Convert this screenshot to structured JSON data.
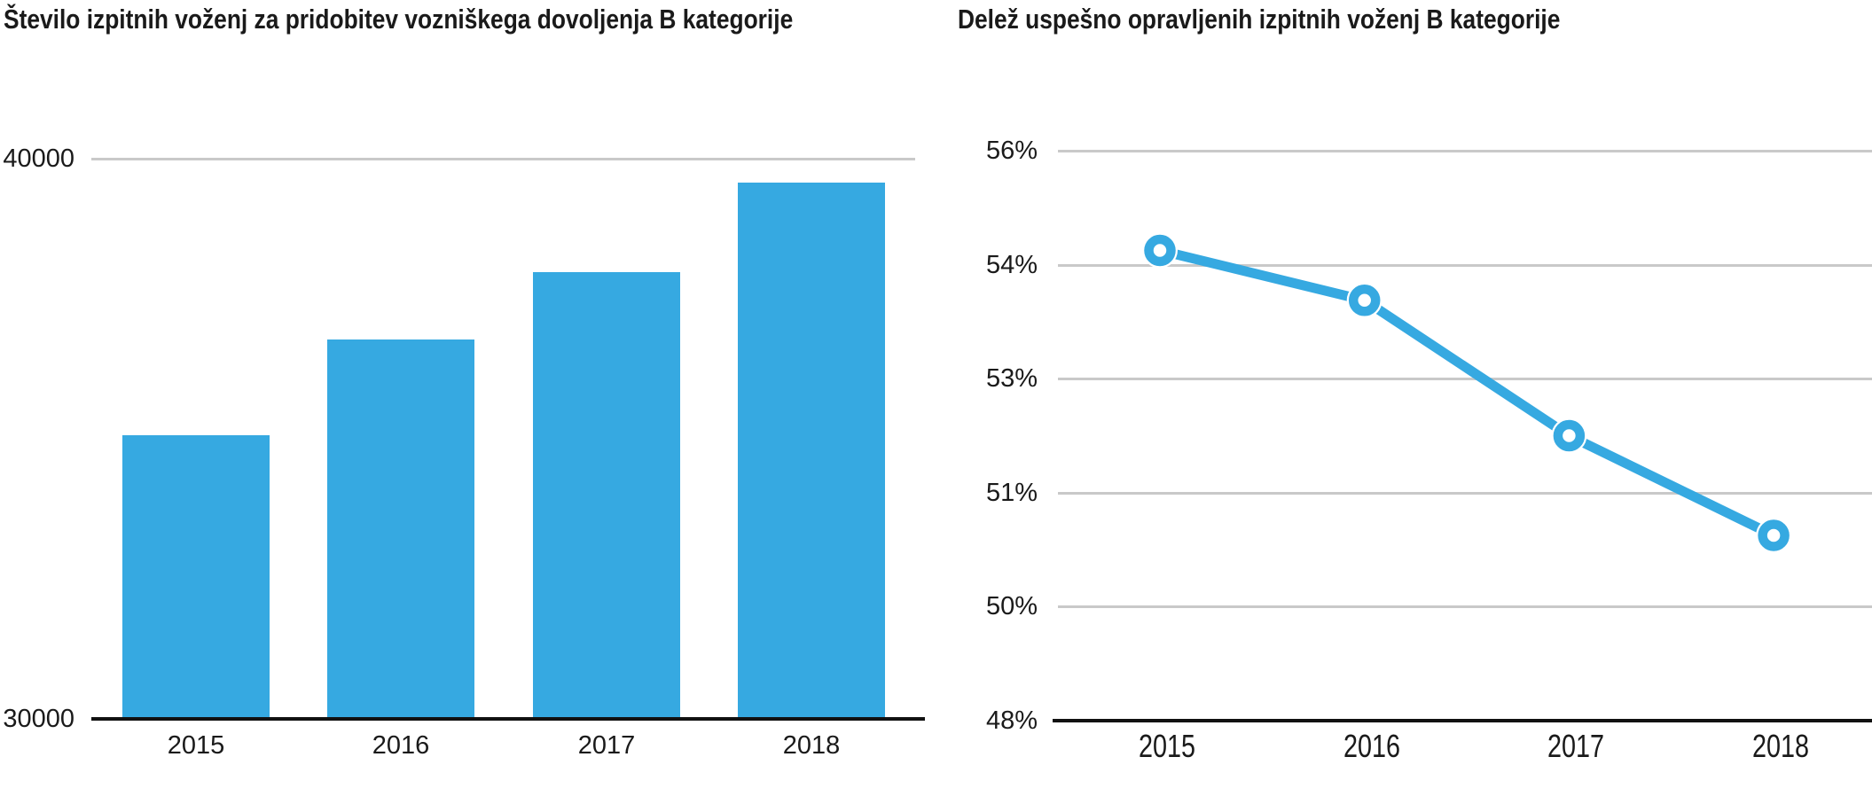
{
  "chart_data": [
    {
      "type": "bar",
      "title": "Število izpitnih voženj za pridobitev vozniškega dovoljenja B kategorije",
      "categories": [
        "2015",
        "2016",
        "2017",
        "2018"
      ],
      "values": [
        35100,
        36800,
        38000,
        39600
      ],
      "ylim": [
        30000,
        40000
      ],
      "yticks": [
        {
          "value": 40000,
          "label": "40000"
        },
        {
          "value": 30000,
          "label": "30000"
        }
      ],
      "bar_color": "#36A9E1",
      "grid_color": "#C9C9C9",
      "axis_color": "#111111",
      "text_color": "#1A1A1A",
      "legend": "none",
      "grid": "single gray gridline at 40000, black baseline axis at 30000"
    },
    {
      "type": "line",
      "title": "Delež uspešno opravljenih izpitnih voženj B kategorije",
      "categories": [
        "2015",
        "2016",
        "2017",
        "2018"
      ],
      "values": [
        54.6,
        53.9,
        52.0,
        50.6
      ],
      "ylim": [
        48,
        56
      ],
      "yticks": [
        {
          "value": 56,
          "label": "56%"
        },
        {
          "value": 54.4,
          "label": "54%"
        },
        {
          "value": 52.8,
          "label": "53%"
        },
        {
          "value": 51.2,
          "label": "51%"
        },
        {
          "value": 49.6,
          "label": "50%"
        },
        {
          "value": 48,
          "label": "48%"
        }
      ],
      "line_color": "#36A9E1",
      "marker": "open-circle",
      "grid_color": "#C9C9C9",
      "axis_color": "#111111",
      "text_color": "#1A1A1A",
      "legend": "none",
      "grid": "gray horizontal gridlines at each ytick, black baseline axis at 48%"
    }
  ]
}
